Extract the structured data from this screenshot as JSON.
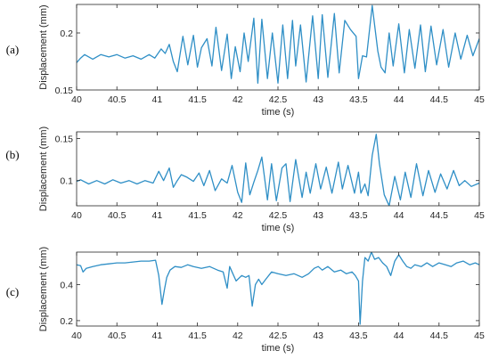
{
  "colors": {
    "line": "#2f8fc6",
    "axis": "#262626",
    "background": "#ffffff"
  },
  "chart_data": [
    {
      "type": "line",
      "panel_label": "(a)",
      "xlabel": "time (s)",
      "ylabel": "Displacement (mm)",
      "xlim": [
        40,
        45
      ],
      "ylim": [
        0.15,
        0.225
      ],
      "xticks": [
        40,
        40.5,
        41,
        41.5,
        42,
        42.5,
        43,
        43.5,
        44,
        44.5,
        45
      ],
      "xtick_labels": [
        "40",
        "40.5",
        "41",
        "41.5",
        "42",
        "42.5",
        "43",
        "43.5",
        "44",
        "44.5",
        "45"
      ],
      "yticks": [
        0.15,
        0.2
      ],
      "ytick_labels": [
        "0.15",
        "0.2"
      ],
      "grid": false,
      "series": [
        {
          "x": [
            40.0,
            40.05,
            40.1,
            40.2,
            40.3,
            40.4,
            40.5,
            40.6,
            40.7,
            40.8,
            40.9,
            40.97,
            41.05,
            41.1,
            41.15,
            41.2,
            41.25,
            41.32,
            41.38,
            41.45,
            41.5,
            41.55,
            41.62,
            41.68,
            41.73,
            41.8,
            41.87,
            41.92,
            41.97,
            42.03,
            42.08,
            42.13,
            42.2,
            42.25,
            42.3,
            42.37,
            42.43,
            42.5,
            42.56,
            42.62,
            42.68,
            42.72,
            42.78,
            42.85,
            42.93,
            43.0,
            43.05,
            43.12,
            43.2,
            43.26,
            43.33,
            43.4,
            43.47,
            43.5,
            43.55,
            43.6,
            43.67,
            43.74,
            43.78,
            43.83,
            43.88,
            43.93,
            44.0,
            44.07,
            44.13,
            44.2,
            44.27,
            44.33,
            44.4,
            44.47,
            44.55,
            44.62,
            44.7,
            44.77,
            44.85,
            44.92,
            45.0
          ],
          "y": [
            0.174,
            0.178,
            0.181,
            0.177,
            0.181,
            0.179,
            0.181,
            0.178,
            0.18,
            0.177,
            0.181,
            0.178,
            0.186,
            0.182,
            0.19,
            0.175,
            0.166,
            0.197,
            0.172,
            0.198,
            0.17,
            0.187,
            0.195,
            0.171,
            0.205,
            0.167,
            0.199,
            0.16,
            0.188,
            0.166,
            0.2,
            0.175,
            0.213,
            0.156,
            0.212,
            0.16,
            0.2,
            0.156,
            0.207,
            0.16,
            0.211,
            0.171,
            0.207,
            0.157,
            0.215,
            0.16,
            0.216,
            0.161,
            0.217,
            0.165,
            0.211,
            0.203,
            0.197,
            0.16,
            0.18,
            0.179,
            0.224,
            0.184,
            0.17,
            0.165,
            0.2,
            0.171,
            0.208,
            0.165,
            0.203,
            0.169,
            0.207,
            0.166,
            0.206,
            0.172,
            0.203,
            0.17,
            0.2,
            0.177,
            0.198,
            0.18,
            0.195
          ]
        }
      ]
    },
    {
      "type": "line",
      "panel_label": "(b)",
      "xlabel": "time (s)",
      "ylabel": "Displacement (mm)",
      "xlim": [
        40,
        45
      ],
      "ylim": [
        0.07,
        0.158
      ],
      "xticks": [
        40,
        40.5,
        41,
        41.5,
        42,
        42.5,
        43,
        43.5,
        44,
        44.5,
        45
      ],
      "xtick_labels": [
        "40",
        "40.5",
        "41",
        "41.5",
        "42",
        "42.5",
        "43",
        "43.5",
        "44",
        "44.5",
        "45"
      ],
      "yticks": [
        0.1,
        0.15
      ],
      "ytick_labels": [
        "0.1",
        "0.15"
      ],
      "grid": false,
      "series": [
        {
          "x": [
            40.0,
            40.05,
            40.15,
            40.25,
            40.35,
            40.45,
            40.55,
            40.65,
            40.75,
            40.85,
            40.95,
            41.02,
            41.08,
            41.15,
            41.2,
            41.25,
            41.3,
            41.37,
            41.45,
            41.52,
            41.58,
            41.65,
            41.72,
            41.8,
            41.87,
            41.93,
            42.0,
            42.05,
            42.1,
            42.15,
            42.2,
            42.25,
            42.3,
            42.37,
            42.42,
            42.48,
            42.55,
            42.6,
            42.65,
            42.72,
            42.8,
            42.85,
            42.9,
            42.97,
            43.03,
            43.1,
            43.17,
            43.25,
            43.3,
            43.37,
            43.45,
            43.5,
            43.53,
            43.58,
            43.62,
            43.67,
            43.72,
            43.76,
            43.82,
            43.88,
            43.95,
            44.02,
            44.08,
            44.15,
            44.22,
            44.3,
            44.37,
            44.45,
            44.52,
            44.6,
            44.68,
            44.75,
            44.82,
            44.9,
            45.0
          ],
          "y": [
            0.099,
            0.101,
            0.096,
            0.1,
            0.096,
            0.101,
            0.097,
            0.1,
            0.096,
            0.1,
            0.097,
            0.111,
            0.1,
            0.115,
            0.092,
            0.1,
            0.107,
            0.104,
            0.099,
            0.109,
            0.094,
            0.112,
            0.088,
            0.102,
            0.097,
            0.118,
            0.086,
            0.074,
            0.121,
            0.083,
            0.098,
            0.112,
            0.128,
            0.077,
            0.12,
            0.076,
            0.115,
            0.12,
            0.075,
            0.125,
            0.08,
            0.11,
            0.085,
            0.12,
            0.09,
            0.116,
            0.085,
            0.122,
            0.09,
            0.118,
            0.085,
            0.11,
            0.085,
            0.096,
            0.082,
            0.13,
            0.155,
            0.12,
            0.083,
            0.07,
            0.105,
            0.077,
            0.11,
            0.08,
            0.12,
            0.082,
            0.112,
            0.086,
            0.108,
            0.09,
            0.112,
            0.094,
            0.1,
            0.093,
            0.097
          ]
        }
      ]
    },
    {
      "type": "line",
      "panel_label": "(c)",
      "xlabel": "time (s)",
      "ylabel": "Displacement (mm)",
      "xlim": [
        40,
        45
      ],
      "ylim": [
        0.17,
        0.58
      ],
      "xticks": [
        40,
        40.5,
        41,
        41.5,
        42,
        42.5,
        43,
        43.5,
        44,
        44.5,
        45
      ],
      "xtick_labels": [
        "40",
        "40.5",
        "41",
        "41.5",
        "42",
        "42.5",
        "43",
        "43.5",
        "44",
        "44.5",
        "45"
      ],
      "yticks": [
        0.2,
        0.4
      ],
      "ytick_labels": [
        "0.2",
        "0.4"
      ],
      "grid": false,
      "series": [
        {
          "x": [
            40.0,
            40.05,
            40.08,
            40.12,
            40.2,
            40.3,
            40.4,
            40.5,
            40.6,
            40.7,
            40.8,
            40.9,
            40.98,
            41.02,
            41.06,
            41.09,
            41.12,
            41.16,
            41.22,
            41.3,
            41.38,
            41.45,
            41.55,
            41.65,
            41.75,
            41.82,
            41.87,
            41.9,
            41.93,
            41.98,
            42.05,
            42.1,
            42.14,
            42.18,
            42.22,
            42.26,
            42.3,
            42.35,
            42.42,
            42.5,
            42.6,
            42.7,
            42.8,
            42.88,
            42.95,
            43.0,
            43.05,
            43.12,
            43.2,
            43.28,
            43.35,
            43.42,
            43.46,
            43.5,
            43.52,
            43.55,
            43.58,
            43.62,
            43.66,
            43.7,
            43.75,
            43.8,
            43.85,
            43.9,
            43.95,
            44.0,
            44.05,
            44.1,
            44.15,
            44.2,
            44.28,
            44.35,
            44.42,
            44.5,
            44.58,
            44.65,
            44.72,
            44.8,
            44.88,
            44.95,
            45.0
          ],
          "y": [
            0.51,
            0.505,
            0.47,
            0.49,
            0.5,
            0.51,
            0.515,
            0.52,
            0.52,
            0.525,
            0.53,
            0.53,
            0.535,
            0.45,
            0.29,
            0.37,
            0.44,
            0.48,
            0.5,
            0.495,
            0.51,
            0.5,
            0.49,
            0.5,
            0.48,
            0.47,
            0.38,
            0.5,
            0.47,
            0.42,
            0.45,
            0.44,
            0.45,
            0.28,
            0.4,
            0.43,
            0.4,
            0.43,
            0.47,
            0.46,
            0.45,
            0.46,
            0.44,
            0.46,
            0.49,
            0.5,
            0.48,
            0.5,
            0.47,
            0.48,
            0.46,
            0.47,
            0.45,
            0.42,
            0.18,
            0.42,
            0.55,
            0.53,
            0.58,
            0.54,
            0.55,
            0.52,
            0.5,
            0.45,
            0.53,
            0.565,
            0.53,
            0.5,
            0.49,
            0.51,
            0.5,
            0.52,
            0.5,
            0.52,
            0.51,
            0.5,
            0.52,
            0.53,
            0.51,
            0.52,
            0.51
          ]
        }
      ]
    }
  ]
}
